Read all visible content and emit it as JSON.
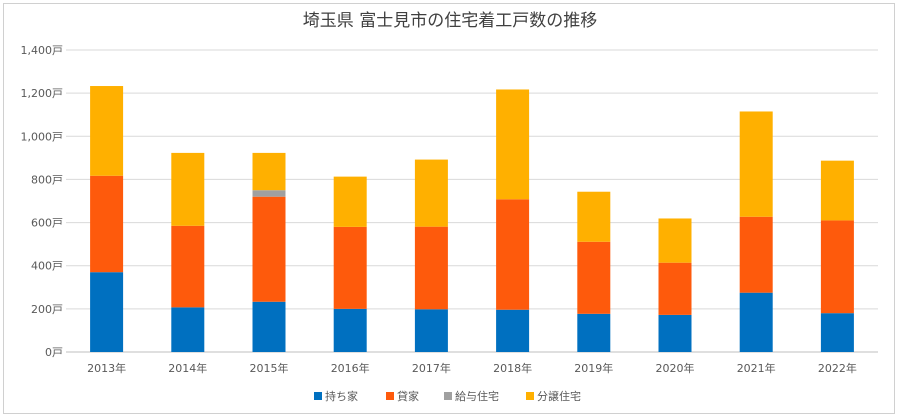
{
  "chart_data": {
    "type": "bar",
    "stacked": true,
    "title": "埼玉県 富士見市の住宅着工戸数の推移",
    "categories": [
      "2013年",
      "2014年",
      "2015年",
      "2016年",
      "2017年",
      "2018年",
      "2019年",
      "2020年",
      "2021年",
      "2022年"
    ],
    "series": [
      {
        "name": "持ち家",
        "color": "#0070c0",
        "values": [
          370,
          207,
          233,
          200,
          198,
          196,
          177,
          172,
          275,
          180
        ]
      },
      {
        "name": "貸家",
        "color": "#fe5a0c",
        "values": [
          447,
          378,
          487,
          380,
          383,
          512,
          334,
          242,
          352,
          430
        ]
      },
      {
        "name": "給与住宅",
        "color": "#a0a0a0",
        "values": [
          0,
          0,
          30,
          0,
          0,
          0,
          0,
          0,
          0,
          0
        ]
      },
      {
        "name": "分譲住宅",
        "color": "#ffb000",
        "values": [
          416,
          338,
          173,
          233,
          311,
          509,
          232,
          205,
          488,
          277
        ]
      }
    ],
    "ylim": [
      0,
      1400
    ],
    "yticks": [
      0,
      200,
      400,
      600,
      800,
      1000,
      1200,
      1400
    ],
    "ytick_labels": [
      "0戸",
      "200戸",
      "400戸",
      "600戸",
      "800戸",
      "1,000戸",
      "1,200戸",
      "1,400戸"
    ],
    "grid": true,
    "legend_position": "bottom"
  }
}
